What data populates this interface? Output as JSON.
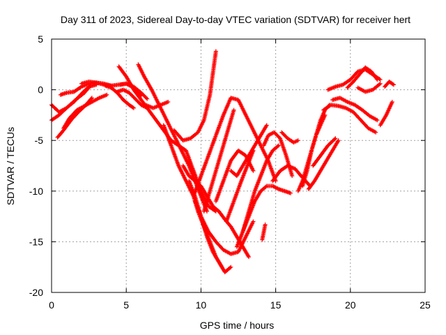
{
  "chart_data": {
    "type": "scatter",
    "title": "Day 311 of 2023, Sidereal Day-to-day VTEC variation (SDTVAR) for receiver hert",
    "xlabel": "GPS time / hours",
    "ylabel": "SDTVAR / TECUs",
    "xlim": [
      0,
      25
    ],
    "ylim": [
      -20,
      5
    ],
    "xticks": [
      0,
      5,
      10,
      15,
      20,
      25
    ],
    "yticks": [
      -20,
      -15,
      -10,
      -5,
      0,
      5
    ],
    "xtick_labels": [
      "0",
      "5",
      "10",
      "15",
      "20",
      "25"
    ],
    "ytick_labels": [
      "-20",
      "-15",
      "-10",
      "-5",
      "0",
      "5"
    ],
    "grid": true,
    "marker": "+",
    "color": "#ff0000",
    "series": [
      {
        "x": [
          0.0,
          0.5,
          1.0,
          1.6,
          2.2,
          2.6
        ],
        "y": [
          -3.0,
          -2.5,
          -1.8,
          -1.0,
          -0.3,
          0.4
        ]
      },
      {
        "x": [
          0.0,
          0.5,
          1.0,
          1.5,
          2.0,
          2.5,
          3.0
        ],
        "y": [
          -1.5,
          -2.2,
          -1.8,
          -1.2,
          -0.4,
          0.3,
          0.5
        ]
      },
      {
        "x": [
          0.4,
          0.8,
          1.3,
          1.8,
          2.3,
          2.7
        ],
        "y": [
          -4.7,
          -4.0,
          -3.0,
          -2.2,
          -1.5,
          -0.8
        ]
      },
      {
        "x": [
          0.6,
          1.0,
          1.5,
          2.0,
          2.5,
          3.0,
          3.5,
          4.0
        ],
        "y": [
          -0.5,
          -0.3,
          -0.2,
          0.3,
          0.6,
          0.7,
          0.6,
          0.4
        ]
      },
      {
        "x": [
          0.8,
          1.2,
          1.7,
          2.2,
          2.7,
          3.2,
          3.7
        ],
        "y": [
          -3.8,
          -2.8,
          -2.0,
          -1.6,
          -1.2,
          -0.8,
          -0.5
        ]
      },
      {
        "x": [
          2.0,
          2.5,
          3.0,
          3.5,
          4.0,
          4.5,
          5.0,
          5.5,
          6.0
        ],
        "y": [
          0.6,
          0.8,
          0.7,
          0.5,
          0.4,
          0.5,
          0.6,
          0.2,
          -0.6
        ]
      },
      {
        "x": [
          4.4,
          4.8,
          5.2,
          5.6,
          6.0,
          6.4
        ],
        "y": [
          -0.2,
          0.0,
          -0.3,
          -0.9,
          -1.5,
          -1.8
        ]
      },
      {
        "x": [
          3.6,
          4.0,
          4.4,
          4.8,
          5.2,
          5.5
        ],
        "y": [
          0.4,
          0.2,
          -0.3,
          -1.0,
          -1.5,
          -1.8
        ]
      },
      {
        "x": [
          4.6,
          5.0,
          5.5,
          6.0,
          6.4
        ],
        "y": [
          0.5,
          0.6,
          0.3,
          -0.3,
          -0.9
        ]
      },
      {
        "x": [
          4.5,
          5.0,
          5.5,
          6.0,
          6.5,
          7.0,
          7.5,
          8.0,
          8.5,
          9.0,
          9.5,
          10.0,
          10.5,
          11.0
        ],
        "y": [
          2.3,
          1.3,
          0.0,
          -1.0,
          -2.0,
          -3.0,
          -4.0,
          -5.0,
          -5.5,
          -6.0,
          -8.0,
          -10.0,
          -11.5,
          -12.0
        ]
      },
      {
        "x": [
          5.8,
          6.2,
          6.7,
          7.2,
          7.7,
          8.2,
          8.7,
          9.2,
          9.6,
          10.0,
          10.4
        ],
        "y": [
          2.5,
          1.3,
          0.0,
          -1.5,
          -3.0,
          -4.5,
          -6.0,
          -7.5,
          -9.0,
          -10.5,
          -12.0
        ]
      },
      {
        "x": [
          6.3,
          6.8,
          7.3,
          7.8
        ],
        "y": [
          -1.5,
          -1.8,
          -1.5,
          -1.2
        ]
      },
      {
        "x": [
          7.5,
          8.0,
          8.5,
          9.0,
          9.5,
          9.8,
          10.2,
          10.6,
          11.0,
          11.4
        ],
        "y": [
          -3.5,
          -5.5,
          -7.5,
          -9.0,
          -10.5,
          -12.0,
          -13.5,
          -15.0,
          -16.5,
          -17.5
        ]
      },
      {
        "x": [
          8.2,
          8.8,
          9.3,
          9.8,
          10.2,
          10.6,
          11.0
        ],
        "y": [
          -4.0,
          -5.0,
          -4.8,
          -4.2,
          -3.0,
          -0.5,
          3.8
        ]
      },
      {
        "x": [
          8.8,
          9.2,
          9.6,
          10.0,
          10.4,
          10.8,
          11.2,
          11.6,
          12.0,
          12.4,
          12.8,
          13.2
        ],
        "y": [
          -7.5,
          -8.5,
          -9.0,
          -9.5,
          -10.5,
          -11.5,
          -12.0,
          -12.8,
          -13.5,
          -14.5,
          -15.5,
          -16.5
        ]
      },
      {
        "x": [
          9.2,
          9.6,
          10.0,
          10.4,
          10.8,
          11.2,
          11.6,
          12.0
        ],
        "y": [
          -9.0,
          -10.5,
          -12.5,
          -14.5,
          -16.0,
          -17.0,
          -18.0,
          -17.5
        ]
      },
      {
        "x": [
          9.6,
          10.0,
          10.5,
          11.0,
          11.5,
          12.0,
          12.5,
          13.0,
          13.5
        ],
        "y": [
          -11.0,
          -12.5,
          -14.0,
          -15.0,
          -15.8,
          -16.2,
          -16.0,
          -14.5,
          -13.0
        ]
      },
      {
        "x": [
          9.5,
          10.0,
          10.5,
          11.0,
          11.5,
          12.0,
          12.5,
          13.0,
          13.5,
          14.0,
          14.5,
          15.0
        ],
        "y": [
          -10.5,
          -8.5,
          -6.5,
          -4.5,
          -2.5,
          -0.8,
          -1.0,
          -2.5,
          -4.0,
          -5.5,
          -7.0,
          -9.0
        ]
      },
      {
        "x": [
          10.2,
          10.6,
          11.0,
          11.4,
          11.8,
          12.2
        ],
        "y": [
          -12.0,
          -10.0,
          -8.0,
          -6.0,
          -4.0,
          -2.0
        ]
      },
      {
        "x": [
          11.0,
          11.5,
          12.0,
          12.5,
          13.0,
          13.5
        ],
        "y": [
          -11.0,
          -9.0,
          -7.0,
          -6.0,
          -6.5,
          -8.0
        ]
      },
      {
        "x": [
          12.0,
          12.4,
          12.8,
          13.2,
          13.6,
          14.0,
          14.4
        ],
        "y": [
          -8.0,
          -8.5,
          -7.5,
          -6.5,
          -5.5,
          -4.5,
          -3.5
        ]
      },
      {
        "x": [
          12.4,
          12.8,
          13.2,
          13.6,
          14.0,
          14.4,
          14.8,
          15.2,
          15.6,
          16.0
        ],
        "y": [
          -15.5,
          -14.0,
          -12.5,
          -11.0,
          -10.0,
          -9.5,
          -9.5,
          -9.8,
          -10.0,
          -10.2
        ]
      },
      {
        "x": [
          12.8,
          13.2,
          13.6,
          14.0,
          14.4,
          14.8,
          15.2
        ],
        "y": [
          -14.0,
          -12.0,
          -10.0,
          -8.5,
          -7.0,
          -6.0,
          -5.5
        ]
      },
      {
        "x": [
          11.7,
          12.2,
          12.7,
          13.1,
          13.5
        ],
        "y": [
          -13.0,
          -11.0,
          -9.0,
          -7.5,
          -6.0
        ]
      },
      {
        "x": [
          14.1,
          14.3
        ],
        "y": [
          -14.8,
          -13.3
        ]
      },
      {
        "x": [
          14.2,
          14.5,
          14.9,
          15.3,
          15.7,
          16.1
        ],
        "y": [
          -5.5,
          -4.5,
          -4.2,
          -4.8,
          -6.5,
          -8.5
        ]
      },
      {
        "x": [
          14.8,
          15.3,
          15.8,
          16.3,
          16.7,
          17.0,
          17.3
        ],
        "y": [
          -9.0,
          -8.0,
          -7.5,
          -7.8,
          -8.5,
          -9.0,
          -9.5
        ]
      },
      {
        "x": [
          15.4,
          15.8,
          16.2,
          16.5
        ],
        "y": [
          -4.2,
          -4.8,
          -5.2,
          -5.0
        ]
      },
      {
        "x": [
          16.5,
          16.8,
          17.1,
          17.4,
          17.7,
          18.0,
          18.3
        ],
        "y": [
          -10.0,
          -9.0,
          -7.5,
          -6.0,
          -4.5,
          -3.5,
          -2.5
        ]
      },
      {
        "x": [
          16.8,
          17.1,
          17.4,
          17.7,
          18.0,
          18.3,
          18.6
        ],
        "y": [
          -9.5,
          -8.0,
          -6.0,
          -4.5,
          -3.0,
          -2.0,
          -1.5
        ]
      },
      {
        "x": [
          17.2,
          17.6,
          18.0,
          18.4,
          18.8,
          19.2
        ],
        "y": [
          -9.8,
          -9.0,
          -8.0,
          -7.0,
          -6.0,
          -5.0
        ]
      },
      {
        "x": [
          17.5,
          18.0,
          18.5,
          19.0
        ],
        "y": [
          -7.5,
          -6.5,
          -5.5,
          -4.8
        ]
      },
      {
        "x": [
          18.2,
          18.7,
          19.2,
          19.7,
          20.2,
          20.7,
          21.2,
          21.7
        ],
        "y": [
          -2.0,
          -1.5,
          -1.6,
          -1.8,
          -2.2,
          -3.0,
          -3.8,
          -4.2
        ]
      },
      {
        "x": [
          18.8,
          19.3,
          19.8,
          20.3,
          20.8,
          21.3,
          21.8
        ],
        "y": [
          -1.0,
          -0.8,
          -1.2,
          -1.5,
          -2.0,
          -2.6,
          -3.0
        ]
      },
      {
        "x": [
          18.5,
          19.0,
          19.5,
          20.0,
          20.5,
          21.0,
          21.5,
          22.0
        ],
        "y": [
          0.0,
          0.3,
          0.5,
          1.0,
          1.8,
          2.0,
          1.5,
          1.0
        ]
      },
      {
        "x": [
          19.8,
          20.2,
          20.6,
          21.0,
          21.4,
          21.8
        ],
        "y": [
          0.2,
          0.8,
          1.5,
          2.2,
          1.8,
          1.0
        ]
      },
      {
        "x": [
          20.5,
          21.0,
          21.5,
          22.0
        ],
        "y": [
          0.2,
          -0.2,
          0.0,
          0.6
        ]
      },
      {
        "x": [
          22.3,
          22.6,
          22.9
        ],
        "y": [
          0.3,
          0.8,
          0.5
        ]
      },
      {
        "x": [
          22.0,
          22.4,
          22.8
        ],
        "y": [
          -3.5,
          -2.5,
          -1.2
        ]
      }
    ]
  }
}
